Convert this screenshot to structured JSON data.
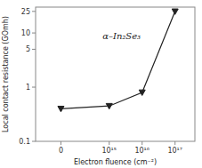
{
  "chart_data": {
    "type": "line",
    "title": "α–In₂Se₃",
    "xlabel": "Electron fluence (cm⁻²)",
    "ylabel": "Local contact resistance (GOmh)",
    "x": [
      0,
      1000000000000000.0,
      1e+16,
      1e+17
    ],
    "values": [
      0.4,
      0.45,
      0.8,
      25.0
    ],
    "color": "#222222",
    "marker": "triangle-down",
    "xlim": [
      -200000000000000.0,
      4e+17
    ],
    "xticks": [
      0,
      {
        "value": 1000000000000000.0,
        "label": "10¹⁵"
      },
      {
        "value": 1e+16,
        "label": "10¹⁶"
      },
      {
        "value": 1e+17,
        "label": "10¹⁷"
      }
    ],
    "ylim": [
      0.1,
      30
    ],
    "yticks": [
      0.1,
      1,
      5,
      10,
      25
    ],
    "log": "y",
    "grid": false
  }
}
